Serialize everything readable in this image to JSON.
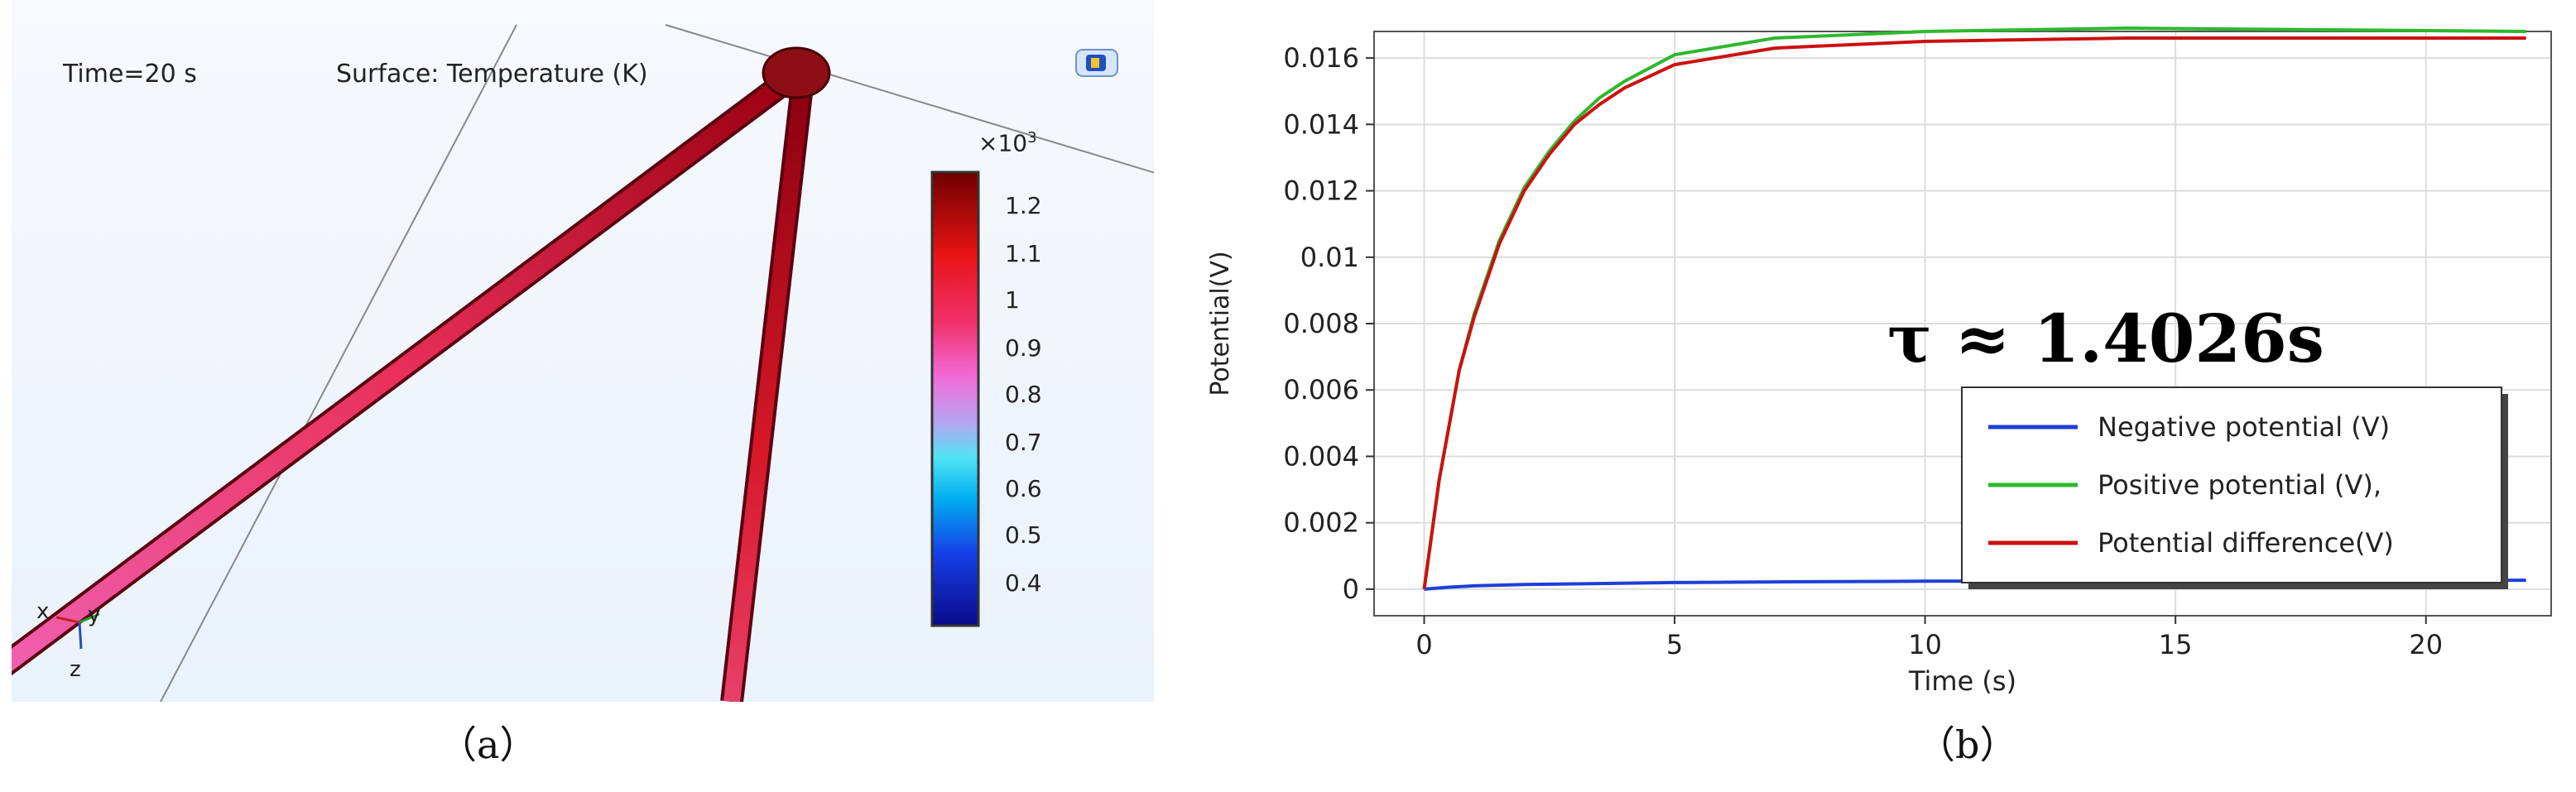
{
  "panel_a": {
    "time_label": "Time=20 s",
    "surface_label": "Surface: Temperature (K)",
    "colorbar": {
      "multiplier": "×10",
      "multiplier_exp": "3",
      "ticks": [
        "1.2",
        "1.1",
        "1",
        "0.9",
        "0.8",
        "0.7",
        "0.6",
        "0.5",
        "0.4"
      ]
    },
    "axes_triad": {
      "x": "x",
      "y": "y",
      "z": "z"
    },
    "caption": "（a）"
  },
  "panel_b": {
    "caption": "（b）",
    "annotation": "τ ≈ 1.4026s"
  },
  "chart_data": {
    "type": "line",
    "xlabel": "Time (s)",
    "ylabel": "Potential(V)",
    "xlim": [
      -1,
      22.5
    ],
    "ylim": [
      -0.0008,
      0.0168
    ],
    "xticks": [
      0,
      5,
      10,
      15,
      20
    ],
    "yticks": [
      0,
      0.002,
      0.004,
      0.006,
      0.008,
      0.01,
      0.012,
      0.014,
      0.016
    ],
    "ytick_labels": [
      "0",
      "0.002",
      "0.004",
      "0.006",
      "0.008",
      "0.01",
      "0.012",
      "0.014",
      "0.016"
    ],
    "grid": true,
    "legend_position": "lower-right",
    "series": [
      {
        "name": "Negative potential (V)",
        "color": "#1f3fd8",
        "x": [
          0,
          0.5,
          1,
          2,
          3,
          5,
          7,
          10,
          15,
          22
        ],
        "y": [
          0,
          6e-05,
          0.0001,
          0.00014,
          0.00016,
          0.0002,
          0.00022,
          0.00024,
          0.00026,
          0.00027
        ]
      },
      {
        "name": "Positive potential (V),",
        "color": "#2eb82e",
        "x": [
          0,
          0.3,
          0.7,
          1,
          1.5,
          2,
          2.5,
          3,
          3.5,
          4,
          5,
          7,
          10,
          14,
          22
        ],
        "y": [
          0,
          0.0033,
          0.0066,
          0.0083,
          0.0105,
          0.0121,
          0.0132,
          0.0141,
          0.0148,
          0.0153,
          0.0161,
          0.0166,
          0.0168,
          0.0169,
          0.0168
        ]
      },
      {
        "name": "Potential difference(V)",
        "color": "#cc1111",
        "x": [
          0,
          0.3,
          0.7,
          1,
          1.5,
          2,
          2.5,
          3,
          3.5,
          4,
          5,
          7,
          10,
          14,
          22
        ],
        "y": [
          0,
          0.0033,
          0.0066,
          0.0082,
          0.0104,
          0.012,
          0.0131,
          0.014,
          0.0146,
          0.0151,
          0.0158,
          0.0163,
          0.0165,
          0.0166,
          0.0166
        ]
      }
    ]
  }
}
